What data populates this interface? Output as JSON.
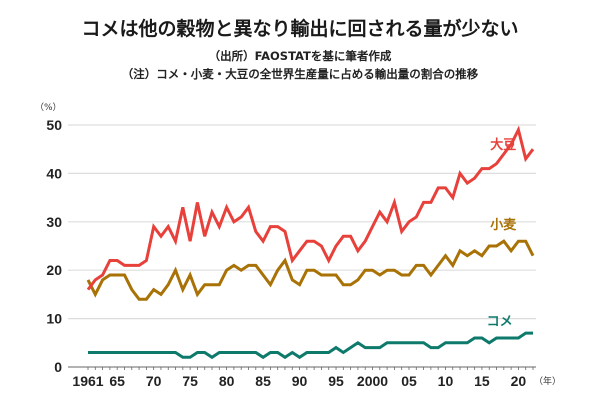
{
  "header": {
    "title": "コメは他の穀物と異なり輸出に回される量が少ない",
    "source": "（出所）FAOSTATを基に筆者作成",
    "note": "（注）コメ・小麦・大豆の全世界生産量に占める輸出量の割合の推移"
  },
  "chart_data": {
    "type": "line",
    "title": "コメは他の穀物と異なり輸出に回される量が少ない",
    "xlabel": "（年）",
    "ylabel": "（%）",
    "ylim": [
      0,
      50
    ],
    "xlim": [
      1961,
      2022
    ],
    "grid": true,
    "yticks": [
      0,
      10,
      20,
      30,
      40,
      50
    ],
    "xticks": [
      {
        "year": 1961,
        "label": "1961"
      },
      {
        "year": 1965,
        "label": "65"
      },
      {
        "year": 1970,
        "label": "70"
      },
      {
        "year": 1975,
        "label": "75"
      },
      {
        "year": 1980,
        "label": "80"
      },
      {
        "year": 1985,
        "label": "85"
      },
      {
        "year": 1990,
        "label": "90"
      },
      {
        "year": 1995,
        "label": "95"
      },
      {
        "year": 2000,
        "label": "2000"
      },
      {
        "year": 2005,
        "label": "05"
      },
      {
        "year": 2010,
        "label": "10"
      },
      {
        "year": 2015,
        "label": "15"
      },
      {
        "year": 2020,
        "label": "20"
      }
    ],
    "x_start": 1961,
    "series": [
      {
        "name": "大豆",
        "color": "#e8403a",
        "label_year": 2016,
        "label_value": 45,
        "values": [
          16,
          18,
          19,
          22,
          22,
          21,
          21,
          21,
          22,
          29,
          27,
          29,
          26,
          33,
          26,
          34,
          27,
          32,
          29,
          33,
          30,
          31,
          33,
          28,
          26,
          29,
          29,
          28,
          22,
          24,
          26,
          26,
          25,
          22,
          25,
          27,
          27,
          24,
          26,
          29,
          32,
          30,
          34,
          28,
          30,
          31,
          34,
          34,
          37,
          37,
          35,
          40,
          38,
          39,
          41,
          41,
          42,
          44,
          46,
          49,
          43,
          45
        ]
      },
      {
        "name": "小麦",
        "color": "#a87206",
        "label_year": 2016,
        "label_value": 28.5,
        "values": [
          18,
          15,
          18,
          19,
          19,
          19,
          16,
          14,
          14,
          16,
          15,
          17,
          20,
          16,
          19,
          15,
          17,
          17,
          17,
          20,
          21,
          20,
          21,
          21,
          19,
          17,
          20,
          22,
          18,
          17,
          20,
          20,
          19,
          19,
          19,
          17,
          17,
          18,
          20,
          20,
          19,
          20,
          20,
          19,
          19,
          21,
          21,
          19,
          21,
          23,
          21,
          24,
          23,
          24,
          23,
          25,
          25,
          26,
          24,
          26,
          26,
          23
        ]
      },
      {
        "name": "コメ",
        "color": "#0e7a6b",
        "label_year": 2015.5,
        "label_value": 8.6,
        "values": [
          3,
          3,
          3,
          3,
          3,
          3,
          3,
          3,
          3,
          3,
          3,
          3,
          3,
          2,
          2,
          3,
          3,
          2,
          3,
          3,
          3,
          3,
          3,
          3,
          2,
          3,
          3,
          2,
          3,
          2,
          3,
          3,
          3,
          3,
          4,
          3,
          4,
          5,
          4,
          4,
          4,
          5,
          5,
          5,
          5,
          5,
          5,
          4,
          4,
          5,
          5,
          5,
          5,
          6,
          6,
          5,
          6,
          6,
          6,
          6,
          7,
          7
        ]
      }
    ]
  }
}
